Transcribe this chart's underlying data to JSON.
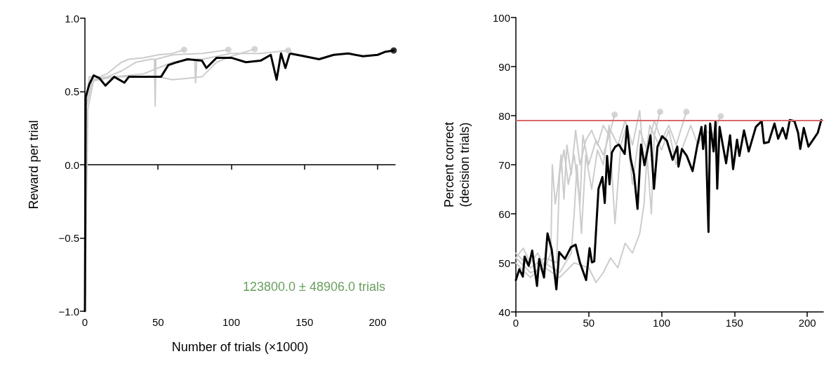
{
  "chart_data": [
    {
      "type": "line",
      "xlabel": "Number of trials (×1000)",
      "ylabel": "Reward per trial",
      "xlim": [
        0,
        212
      ],
      "xticks": [
        0,
        50,
        100,
        150,
        200
      ],
      "ylim": [
        -1,
        1
      ],
      "yticks": [
        {
          "value": -1,
          "label": "−1.0"
        },
        {
          "value": -0.5,
          "label": "−0.5"
        },
        {
          "value": 0,
          "label": "0.0"
        },
        {
          "value": 0.5,
          "label": "0.5"
        },
        {
          "value": 1,
          "label": "1.0"
        }
      ],
      "marker": "none",
      "annotations": [
        "123800.0 ± 48906.0 trials"
      ],
      "series": [
        {
          "color": "#cccccc",
          "x": [
            0,
            1,
            3,
            10,
            15,
            20,
            25,
            30,
            40,
            50,
            60,
            67.8
          ],
          "values": [
            -1,
            0.42,
            0.6,
            0.6,
            0.62,
            0.66,
            0.7,
            0.72,
            0.73,
            0.75,
            0.76,
            0.785
          ]
        },
        {
          "color": "#cccccc",
          "x": [
            0,
            1,
            5,
            15,
            25,
            35,
            45,
            47.5,
            48,
            48.5,
            60,
            80,
            98
          ],
          "values": [
            -1,
            0.4,
            0.58,
            0.6,
            0.64,
            0.7,
            0.72,
            0.72,
            0.4,
            0.72,
            0.75,
            0.76,
            0.785
          ]
        },
        {
          "color": "#cccccc",
          "x": [
            0,
            1,
            5,
            20,
            40,
            50,
            60,
            70,
            80,
            90,
            100,
            116
          ],
          "values": [
            -1,
            0.4,
            0.57,
            0.6,
            0.6,
            0.6,
            0.58,
            0.59,
            0.6,
            0.7,
            0.74,
            0.79
          ]
        },
        {
          "color": "#cccccc",
          "x": [
            0,
            2,
            6,
            20,
            40,
            60,
            75,
            75.6,
            76.5,
            80,
            100,
            120,
            139
          ],
          "values": [
            -1,
            0.38,
            0.58,
            0.6,
            0.62,
            0.7,
            0.72,
            0.56,
            0.72,
            0.72,
            0.76,
            0.76,
            0.78
          ]
        },
        {
          "color": "#000000",
          "x": [
            0,
            0.5,
            3,
            6,
            10,
            14,
            20,
            27,
            30,
            48,
            52,
            57,
            63,
            70,
            80,
            83,
            90,
            100,
            110,
            120,
            127,
            131,
            134,
            137,
            140,
            150,
            160,
            170,
            180,
            190,
            200,
            205,
            211
          ],
          "values": [
            -1,
            0.46,
            0.55,
            0.61,
            0.59,
            0.54,
            0.6,
            0.56,
            0.6,
            0.6,
            0.6,
            0.68,
            0.7,
            0.72,
            0.71,
            0.66,
            0.73,
            0.73,
            0.7,
            0.71,
            0.75,
            0.58,
            0.76,
            0.66,
            0.76,
            0.74,
            0.72,
            0.75,
            0.76,
            0.74,
            0.75,
            0.77,
            0.78
          ]
        },
        {
          "type": "scatter",
          "marker": "circle",
          "x": [
            67.8,
            98,
            116,
            139,
            211
          ],
          "values": [
            0.785,
            0.785,
            0.79,
            0.78,
            0.78
          ],
          "colors": [
            "#cccccc",
            "#cccccc",
            "#cccccc",
            "#cccccc",
            "#000000"
          ]
        }
      ]
    },
    {
      "type": "line",
      "ylabel": "Percent correct\n(decision trials)",
      "xlim": [
        0,
        211
      ],
      "xticks": [
        0,
        50,
        100,
        150,
        200
      ],
      "ylim": [
        40,
        100
      ],
      "yticks": [
        40,
        50,
        60,
        70,
        80,
        90,
        100
      ],
      "marker": "none",
      "ref_lines": [
        {
          "axis": "y",
          "value": 79,
          "color": "#d9686a"
        }
      ],
      "series": [
        {
          "color": "#cccccc",
          "x": [
            0,
            5,
            10,
            15,
            20,
            24,
            25,
            27,
            29,
            31,
            33,
            35,
            38,
            41,
            44,
            48,
            52,
            56,
            60,
            64,
            67.8
          ],
          "values": [
            51,
            53,
            50,
            52,
            49,
            52,
            70,
            62,
            66,
            72,
            63,
            74,
            68,
            77,
            70,
            75,
            77,
            74,
            78,
            76,
            80.2
          ]
        },
        {
          "color": "#cccccc",
          "x": [
            0,
            10,
            20,
            28,
            30,
            33,
            36,
            40,
            44,
            46,
            50,
            55,
            60,
            65,
            70,
            75,
            80,
            85,
            88,
            92,
            95,
            99
          ],
          "values": [
            52,
            49,
            51,
            50,
            68,
            73,
            66,
            72,
            62,
            76,
            70,
            75,
            72,
            77,
            74,
            79,
            74,
            81,
            70,
            78,
            76,
            80.8
          ]
        },
        {
          "color": "#cccccc",
          "x": [
            0,
            10,
            20,
            30,
            38,
            40,
            42,
            45,
            48,
            52,
            56,
            60,
            64,
            68,
            72,
            76,
            80,
            85,
            90,
            95,
            100,
            105,
            110,
            117
          ],
          "values": [
            50,
            47,
            50,
            48,
            52,
            60,
            70,
            56,
            72,
            65,
            73,
            70,
            78,
            58,
            74,
            78,
            66,
            77,
            73,
            79,
            75,
            78,
            74,
            80.8
          ]
        },
        {
          "color": "#cccccc",
          "x": [
            0,
            10,
            20,
            30,
            40,
            50,
            55,
            60,
            65,
            70,
            75,
            80,
            85,
            88,
            90,
            93,
            95,
            100,
            105,
            110,
            115,
            120,
            125,
            130,
            135,
            140.6
          ],
          "values": [
            51,
            48,
            49,
            47,
            50,
            49,
            46,
            48,
            51,
            49,
            54,
            52,
            56,
            62,
            72,
            60,
            76,
            73,
            77,
            70,
            74,
            78,
            74,
            77,
            76,
            79.9
          ]
        },
        {
          "color": "#000000",
          "x": [
            0,
            2.4,
            4.8,
            6,
            8.8,
            11.2,
            14.5,
            16,
            19.3,
            21.7,
            24.6,
            27.8,
            29.7,
            33.7,
            37.8,
            41,
            43.9,
            48.2,
            50.6,
            52.2,
            53.8,
            56.7,
            59.4,
            61,
            62.6,
            64.3,
            65.9,
            68.3,
            70.7,
            74.7,
            76.3,
            78.7,
            81.1,
            83.5,
            85.9,
            88.3,
            92.4,
            94.8,
            97.2,
            100.4,
            103.6,
            107.6,
            110.8,
            111.6,
            114,
            117.3,
            121.3,
            124.5,
            127.4,
            128.5,
            130.1,
            132.2,
            133.3,
            135.7,
            137,
            138.2,
            139.8,
            142.2,
            144.3,
            147,
            149.1,
            151.8,
            153.4,
            156.6,
            159.8,
            164.7,
            168.7,
            170.3,
            173.5,
            177.5,
            180,
            183.1,
            185.5,
            188,
            191.2,
            193.7,
            195.2,
            197.6,
            200.8,
            204,
            207.2,
            209.6
          ],
          "values": [
            46.5,
            48.7,
            47.2,
            51.3,
            49.4,
            52.5,
            45.3,
            50.8,
            47,
            56,
            52.7,
            44.6,
            52.2,
            50.8,
            53.2,
            53.7,
            50.1,
            46.5,
            53,
            50.1,
            50.3,
            65.1,
            67.5,
            62.2,
            71.8,
            66,
            72.5,
            73.7,
            74.1,
            72.2,
            77.9,
            71.3,
            68,
            61,
            74.1,
            69.9,
            76,
            65.1,
            73.7,
            75.8,
            74.9,
            71,
            73.7,
            69.6,
            73.2,
            71.8,
            68.7,
            73.9,
            77.7,
            73.2,
            78,
            56.3,
            78.4,
            72.7,
            78.9,
            65.1,
            77.7,
            73.7,
            70.3,
            76,
            69.1,
            75.1,
            71.8,
            77,
            72.7,
            77.7,
            78.9,
            74.4,
            74.6,
            78.4,
            75.3,
            77.5,
            75.3,
            79.1,
            78.9,
            76.5,
            73.2,
            77.5,
            73.7,
            75.1,
            76.5,
            79.1
          ]
        },
        {
          "type": "scatter",
          "marker": "circle",
          "x": [
            67.8,
            99,
            117,
            140.6
          ],
          "values": [
            80.2,
            80.8,
            80.8,
            79.9
          ],
          "colors": [
            "#cccccc",
            "#cccccc",
            "#cccccc",
            "#cccccc"
          ]
        }
      ]
    }
  ]
}
